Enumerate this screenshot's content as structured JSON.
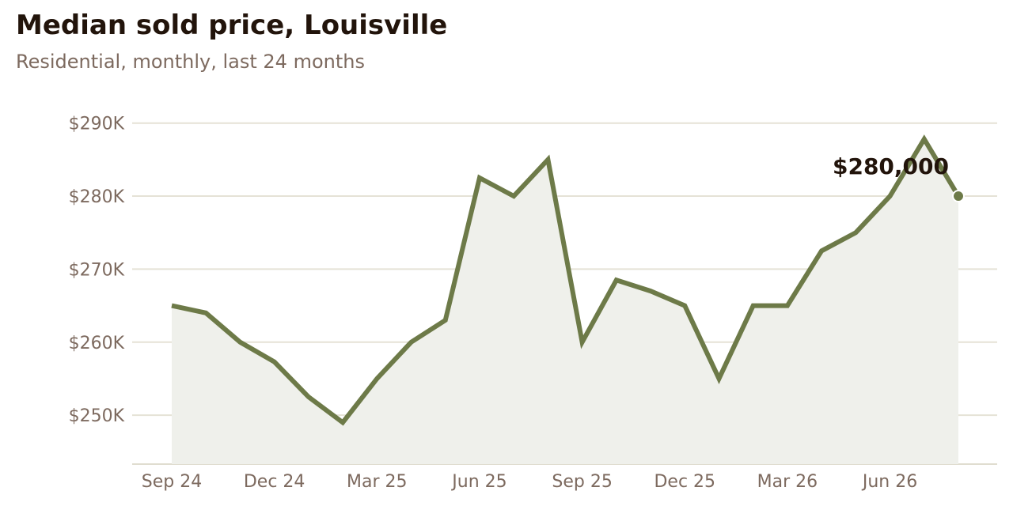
{
  "colors": {
    "line": "#6d7a48",
    "area": "#eff0eb",
    "grid": "#e5e2d6",
    "axis": "#e0ddd0",
    "title": "#22140b",
    "subtitle": "#7d6a5f",
    "tick": "#7d6a5f"
  },
  "chart_data": {
    "type": "area",
    "title": "Median sold price, Louisville",
    "subtitle": "Residential, monthly, last 24 months",
    "x": [
      "2024-09",
      "2024-10",
      "2024-11",
      "2024-12",
      "2025-01",
      "2025-02",
      "2025-03",
      "2025-04",
      "2025-05",
      "2025-06",
      "2025-07",
      "2025-08",
      "2025-09",
      "2025-10",
      "2025-11",
      "2025-12",
      "2026-01",
      "2026-02",
      "2026-03",
      "2026-04",
      "2026-05",
      "2026-06",
      "2026-07",
      "2026-08"
    ],
    "series": [
      {
        "values": [
          265000,
          264000,
          260000,
          257300,
          252500,
          249000,
          255000,
          260000,
          263000,
          282500,
          280000,
          285000,
          260000,
          268500,
          267000,
          265000,
          255000,
          265000,
          265000,
          272500,
          275000,
          280000,
          287800,
          280000
        ]
      }
    ],
    "x_ticks": [
      {
        "label": "Sep 24",
        "at": "2024-09"
      },
      {
        "label": "Dec 24",
        "at": "2024-12"
      },
      {
        "label": "Mar 25",
        "at": "2025-03"
      },
      {
        "label": "Jun 25",
        "at": "2025-06"
      },
      {
        "label": "Sep 25",
        "at": "2025-09"
      },
      {
        "label": "Dec 25",
        "at": "2025-12"
      },
      {
        "label": "Mar 26",
        "at": "2026-03"
      },
      {
        "label": "Jun 26",
        "at": "2026-06"
      }
    ],
    "y_ticks": [
      {
        "label": "$250K",
        "value": 250000
      },
      {
        "label": "$260K",
        "value": 260000
      },
      {
        "label": "$270K",
        "value": 270000
      },
      {
        "label": "$280K",
        "value": 280000
      },
      {
        "label": "$290K",
        "value": 290000
      }
    ],
    "ylim": [
      243300,
      291700
    ],
    "grid": true,
    "legend": "none",
    "annotation": {
      "label": "$280,000",
      "at": "2026-08"
    }
  }
}
